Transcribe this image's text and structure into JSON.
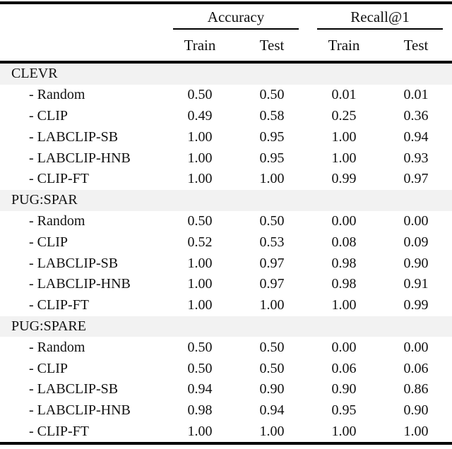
{
  "table": {
    "column_groups": [
      {
        "label": "Accuracy"
      },
      {
        "label": "Recall@1"
      }
    ],
    "sub_headers": [
      "Train",
      "Test",
      "Train",
      "Test"
    ],
    "sections": [
      {
        "name": "CLEVR",
        "rows": [
          {
            "label": "- Random",
            "values": [
              "0.50",
              "0.50",
              "0.01",
              "0.01"
            ]
          },
          {
            "label": "- CLIP",
            "values": [
              "0.49",
              "0.58",
              "0.25",
              "0.36"
            ]
          },
          {
            "label": "- LABCLIP-SB",
            "values": [
              "1.00",
              "0.95",
              "1.00",
              "0.94"
            ]
          },
          {
            "label": "- LABCLIP-HNB",
            "values": [
              "1.00",
              "0.95",
              "1.00",
              "0.93"
            ]
          },
          {
            "label": "- CLIP-FT",
            "values": [
              "1.00",
              "1.00",
              "0.99",
              "0.97"
            ]
          }
        ]
      },
      {
        "name": "PUG:SPAR",
        "rows": [
          {
            "label": "- Random",
            "values": [
              "0.50",
              "0.50",
              "0.00",
              "0.00"
            ]
          },
          {
            "label": "- CLIP",
            "values": [
              "0.52",
              "0.53",
              "0.08",
              "0.09"
            ]
          },
          {
            "label": "- LABCLIP-SB",
            "values": [
              "1.00",
              "0.97",
              "0.98",
              "0.90"
            ]
          },
          {
            "label": "- LABCLIP-HNB",
            "values": [
              "1.00",
              "0.97",
              "0.98",
              "0.91"
            ]
          },
          {
            "label": "- CLIP-FT",
            "values": [
              "1.00",
              "1.00",
              "1.00",
              "0.99"
            ]
          }
        ]
      },
      {
        "name": "PUG:SPARE",
        "rows": [
          {
            "label": "- Random",
            "values": [
              "0.50",
              "0.50",
              "0.00",
              "0.00"
            ]
          },
          {
            "label": "- CLIP",
            "values": [
              "0.50",
              "0.50",
              "0.06",
              "0.06"
            ]
          },
          {
            "label": "- LABCLIP-SB",
            "values": [
              "0.94",
              "0.90",
              "0.90",
              "0.86"
            ]
          },
          {
            "label": "- LABCLIP-HNB",
            "values": [
              "0.98",
              "0.94",
              "0.95",
              "0.90"
            ]
          },
          {
            "label": "- CLIP-FT",
            "values": [
              "1.00",
              "1.00",
              "1.00",
              "1.00"
            ]
          }
        ]
      }
    ]
  },
  "colors": {
    "section_band": "#f2f2f2",
    "rule": "#000000",
    "text": "#111111"
  }
}
